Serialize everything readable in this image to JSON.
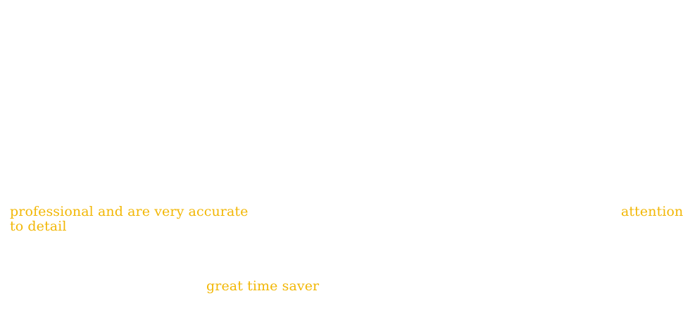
{
  "highlights": {
    "phrase_1": "professional and are very accurate",
    "phrase_2a": "attention",
    "phrase_2b": "to detail",
    "phrase_3": "great time saver"
  },
  "colors": {
    "background": "#ffffff",
    "highlight_text": "#f2b705"
  }
}
